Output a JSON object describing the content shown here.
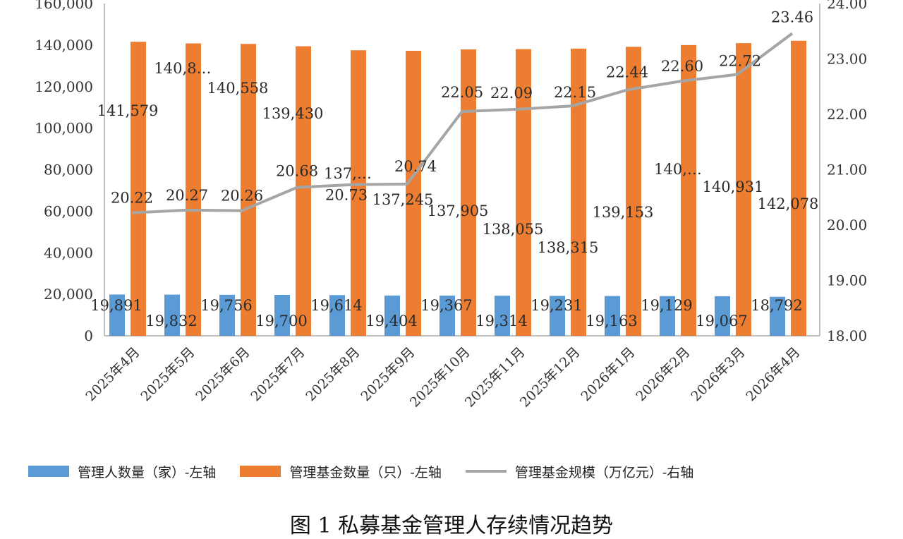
{
  "caption": "图 1 私募基金管理人存续情况趋势",
  "colors": {
    "managers": "#5B9BD5",
    "funds": "#ED7D31",
    "scale": "#A5A5A5",
    "axis": "#BFBFBF"
  },
  "chart_data": {
    "type": "bar",
    "title": "",
    "categories": [
      "2025年4月",
      "2025年5月",
      "2025年6月",
      "2025年7月",
      "2025年8月",
      "2025年9月",
      "2025年10月",
      "2025年11月",
      "2025年12月",
      "2026年1月",
      "2026年2月",
      "2026年3月",
      "2026年4月"
    ],
    "series": [
      {
        "name": "管理人数量（家）-左轴",
        "type": "bar",
        "axis": "left",
        "values": [
          19891,
          19832,
          19756,
          19700,
          19614,
          19404,
          19367,
          19314,
          19231,
          19163,
          19129,
          19067,
          18792
        ],
        "labels": [
          "19,891",
          "19,832",
          "19,756",
          "19,700",
          "19,614",
          "19,404",
          "19,367",
          "19,314",
          "19,231",
          "19,163",
          "19,129",
          "19,067",
          "18,792"
        ]
      },
      {
        "name": "管理基金数量（只）-左轴",
        "type": "bar",
        "axis": "left",
        "values": [
          141579,
          140800,
          140558,
          139430,
          137500,
          137245,
          137905,
          138055,
          138315,
          139153,
          140000,
          140931,
          142078
        ],
        "labels": [
          "141,579",
          "140,8…",
          "140,558",
          "139,430",
          "137,…",
          "137,245",
          "137,905",
          "138,055",
          "138,315",
          "139,153",
          "140,…",
          "140,931",
          "142,078"
        ]
      },
      {
        "name": "管理基金规模（万亿元）-右轴",
        "type": "line",
        "axis": "right",
        "values": [
          20.22,
          20.27,
          20.26,
          20.68,
          20.73,
          20.74,
          22.05,
          22.09,
          22.15,
          22.44,
          22.6,
          22.72,
          23.46
        ],
        "labels": [
          "20.22",
          "20.27",
          "20.26",
          "20.68",
          "20.73",
          "20.74",
          "22.05",
          "22.09",
          "22.15",
          "22.44",
          "22.60",
          "22.72",
          "23.46"
        ]
      }
    ],
    "y_left": {
      "min": 0,
      "max": 160000,
      "ticks": [
        0,
        20000,
        40000,
        60000,
        80000,
        100000,
        120000,
        140000,
        160000
      ],
      "tick_labels": [
        "0",
        "20,000",
        "40,000",
        "60,000",
        "80,000",
        "100,000",
        "120,000",
        "140,000",
        "160,000"
      ]
    },
    "y_right": {
      "min": 18,
      "max": 24,
      "ticks": [
        18,
        19,
        20,
        21,
        22,
        23,
        24
      ],
      "tick_labels": [
        "18.00",
        "19.00",
        "20.00",
        "21.00",
        "22.00",
        "23.00",
        "24.00"
      ]
    },
    "grid": false,
    "legend": "bottom"
  }
}
